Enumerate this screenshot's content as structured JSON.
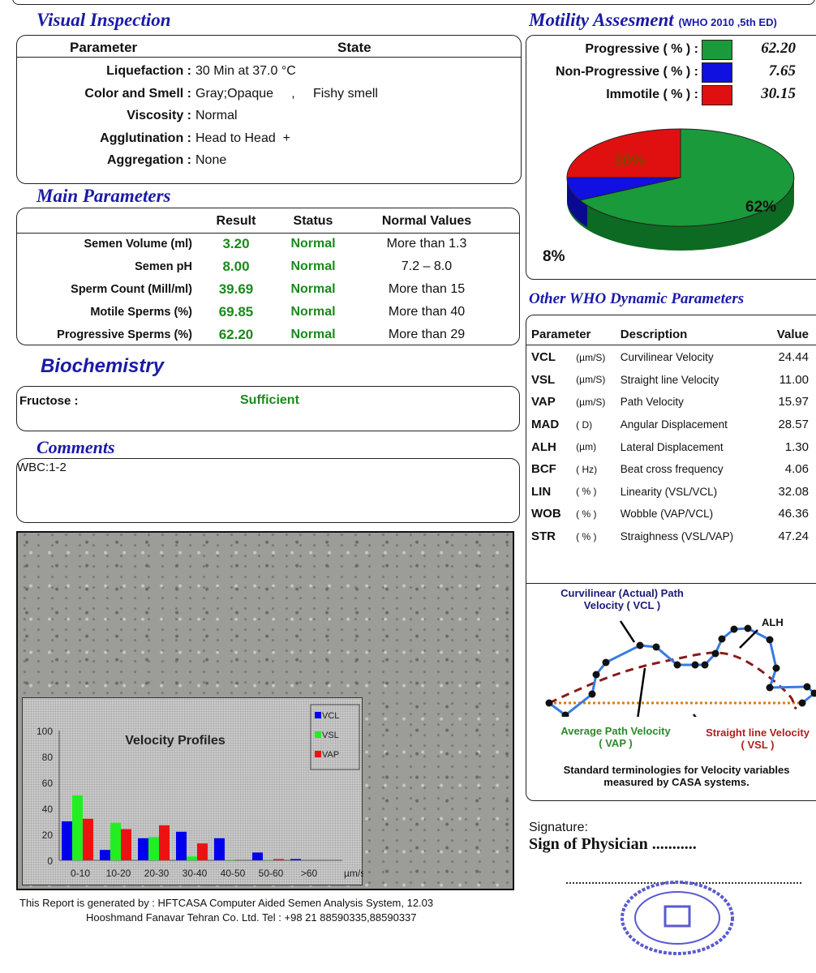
{
  "visual": {
    "title": "Visual Inspection",
    "col_param": "Parameter",
    "col_state": "State",
    "rows": [
      {
        "label": "Liquefaction :",
        "value": "30 Min at 37.0 °C"
      },
      {
        "label": "Color and Smell :",
        "value": "Gray;Opaque     ,     Fishy smell"
      },
      {
        "label": "Viscosity :",
        "value": "Normal"
      },
      {
        "label": "Agglutination :",
        "value": "Head to Head  +"
      },
      {
        "label": "Aggregation :",
        "value": "None"
      }
    ]
  },
  "main": {
    "title": "Main Parameters",
    "headers": [
      "Result",
      "Status",
      "Normal Values"
    ],
    "rows": [
      {
        "label": "Semen Volume (ml)",
        "result": "3.20",
        "status": "Normal",
        "normal": "More than 1.3"
      },
      {
        "label": "Semen pH",
        "result": "8.00",
        "status": "Normal",
        "normal": "7.2 – 8.0"
      },
      {
        "label": "Sperm Count (Mill/ml)",
        "result": "39.69",
        "status": "Normal",
        "normal": "More than  15"
      },
      {
        "label": "Motile Sperms (%)",
        "result": "69.85",
        "status": "Normal",
        "normal": "More than 40"
      },
      {
        "label": "Progressive Sperms (%)",
        "result": "62.20",
        "status": "Normal",
        "normal": "More than 29"
      }
    ]
  },
  "bio": {
    "title": "Biochemistry",
    "label": "Fructose :",
    "value": "Sufficient"
  },
  "comments": {
    "title": "Comments",
    "text": "WBC:1-2"
  },
  "motility": {
    "title": "Motility Assesment",
    "subtitle": "(WHO 2010 ,5th ED)",
    "rows": [
      {
        "label": "Progressive ( % ) :",
        "value": "62.20",
        "color": "#1a9a3a"
      },
      {
        "label": "Non-Progressive ( % ) :",
        "value": "7.65",
        "color": "#1010e0"
      },
      {
        "label": "Immotile ( % ) :",
        "value": "30.15",
        "color": "#e01010"
      }
    ],
    "pie_labels": [
      "62%",
      "8%",
      "30%"
    ]
  },
  "who": {
    "title": "Other WHO Dynamic Parameters",
    "headers": [
      "Parameter",
      "Description",
      "Value"
    ],
    "rows": [
      [
        "VCL",
        "(µm/S)",
        "Curvilinear Velocity",
        "24.44"
      ],
      [
        "VSL",
        "(µm/S)",
        "Straight line Velocity",
        "11.00"
      ],
      [
        "VAP",
        "(µm/S)",
        "Path Velocity",
        "15.97"
      ],
      [
        "MAD",
        "( D)",
        "Angular Displacement",
        "28.57"
      ],
      [
        "ALH",
        "(µm)",
        "Lateral Displacement",
        "1.30"
      ],
      [
        "BCF",
        "( Hz)",
        "Beat cross frequency",
        "4.06"
      ],
      [
        "LIN",
        "( % )",
        "Linearity (VSL/VCL)",
        "32.08"
      ],
      [
        "WOB",
        "( % )",
        "Wobble  (VAP/VCL)",
        "46.36"
      ],
      [
        "STR",
        "( % )",
        "Straighness (VSL/VAP)",
        "47.24"
      ]
    ]
  },
  "diagram": {
    "vcl": "Curvilinear (Actual) Path",
    "vcl2": "Velocity ( VCL )",
    "alh": "ALH",
    "vap": "Average Path Velocity",
    "vap2": "( VAP )",
    "vsl": "Straight line Velocity",
    "vsl2": "( VSL )",
    "caption1": "Standard terminologies for Velocity variables",
    "caption2": "measured by CASA systems."
  },
  "signature": {
    "label": "Signature:",
    "sign": "Sign of Physician ..........."
  },
  "footer": {
    "line1": "This Report is generated by : HFTCASA Computer Aided Semen Analysis System,    12.03",
    "line2": "Hooshmand Fanavar Tehran Co. Ltd.    Tel : +98 21 88590335,88590337"
  },
  "chart_data": {
    "type": "bar",
    "title": "Velocity Profiles",
    "categories": [
      "0-10",
      "10-20",
      "20-30",
      "30-40",
      "40-50",
      "50-60",
      ">60"
    ],
    "xlabel": "µm/sec",
    "ylim": [
      0,
      100
    ],
    "yticks": [
      "0",
      "20",
      "40",
      "60",
      "80",
      "100"
    ],
    "series": [
      {
        "name": "VCL",
        "color": "#0000ee",
        "values": [
          30,
          8,
          17,
          22,
          17,
          6,
          1
        ]
      },
      {
        "name": "VSL",
        "color": "#22ee22",
        "values": [
          50,
          29,
          18,
          3,
          0.5,
          0.5,
          0
        ]
      },
      {
        "name": "VAP",
        "color": "#ee1111",
        "values": [
          32,
          24,
          27,
          13,
          0,
          1,
          0
        ]
      }
    ]
  }
}
